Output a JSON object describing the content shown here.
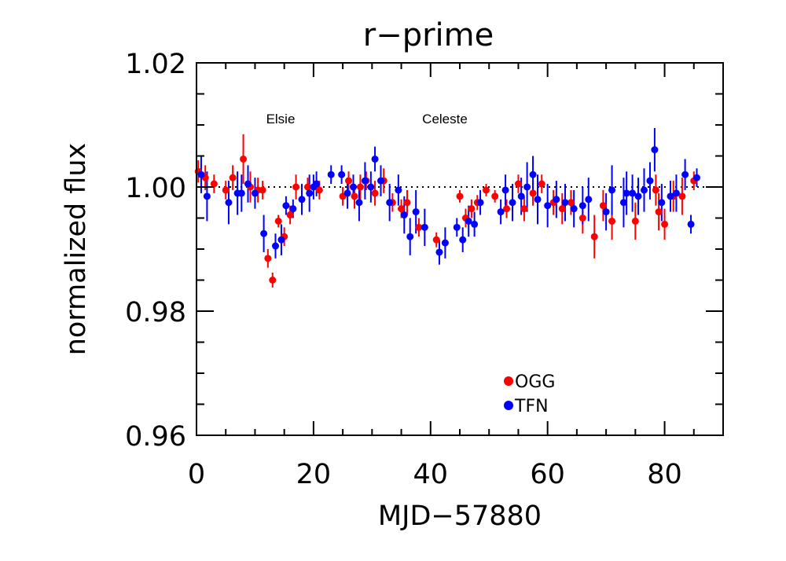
{
  "chart_data": {
    "type": "scatter",
    "title": "r−prime",
    "xlabel": "MJD−57880",
    "ylabel": "normalized flux",
    "xlim": [
      0,
      90
    ],
    "ylim": [
      0.96,
      1.02
    ],
    "x_ticks": [
      0,
      20,
      40,
      60,
      80
    ],
    "x_tick_labels": [
      "0",
      "20",
      "40",
      "60",
      "80"
    ],
    "y_ticks": [
      0.96,
      0.98,
      1.0,
      1.02
    ],
    "y_tick_labels": [
      "0.96",
      "0.98",
      "1.00",
      "1.02"
    ],
    "reference_line": 1.0,
    "annotations": [
      {
        "text": "Elsie",
        "x": 14,
        "y": 1.011
      },
      {
        "text": "Celeste",
        "x": 42,
        "y": 1.011
      }
    ],
    "legend_position": "bottom-center",
    "series": [
      {
        "name": "OGG",
        "color": "#ff0000",
        "points": [
          [
            0.3,
            1.0025,
            0.0018
          ],
          [
            1.5,
            1.0015,
            0.002
          ],
          [
            3.0,
            1.0005,
            0.0015
          ],
          [
            5.0,
            0.9995,
            0.0015
          ],
          [
            6.2,
            1.0015,
            0.002
          ],
          [
            8.0,
            1.0045,
            0.004
          ],
          [
            9.2,
            1.0,
            0.0025
          ],
          [
            10.5,
            0.9995,
            0.002
          ],
          [
            11.3,
            0.9995,
            0.0015
          ],
          [
            12.2,
            0.9885,
            0.0015
          ],
          [
            13.0,
            0.985,
            0.0012
          ],
          [
            14.0,
            0.9945,
            0.001
          ],
          [
            15.0,
            0.992,
            0.0015
          ],
          [
            16.0,
            0.9955,
            0.0015
          ],
          [
            17.0,
            1.0,
            0.002
          ],
          [
            19.0,
            1.0,
            0.0015
          ],
          [
            21.0,
            0.9995,
            0.0015
          ],
          [
            25.0,
            0.9985,
            0.0015
          ],
          [
            26.0,
            1.001,
            0.0015
          ],
          [
            27.0,
            0.9985,
            0.002
          ],
          [
            28.0,
            1.0,
            0.002
          ],
          [
            29.0,
            1.001,
            0.0015
          ],
          [
            30.5,
            0.999,
            0.002
          ],
          [
            32.0,
            1.001,
            0.002
          ],
          [
            33.5,
            0.9975,
            0.0015
          ],
          [
            35.0,
            0.9965,
            0.0015
          ],
          [
            36.0,
            0.9975,
            0.002
          ],
          [
            38.0,
            0.9935,
            0.0015
          ],
          [
            41.0,
            0.9915,
            0.0012
          ],
          [
            45.0,
            0.9985,
            0.001
          ],
          [
            46.0,
            0.995,
            0.0015
          ],
          [
            47.0,
            0.9965,
            0.0015
          ],
          [
            48.0,
            0.9975,
            0.0012
          ],
          [
            49.5,
            0.9995,
            0.001
          ],
          [
            51.0,
            0.9985,
            0.001
          ],
          [
            53.0,
            0.9965,
            0.0015
          ],
          [
            55.0,
            1.0005,
            0.0015
          ],
          [
            56.0,
            0.9965,
            0.002
          ],
          [
            57.5,
            0.999,
            0.002
          ],
          [
            59.0,
            1.0005,
            0.0015
          ],
          [
            61.0,
            0.9975,
            0.002
          ],
          [
            62.5,
            0.9965,
            0.0025
          ],
          [
            64.0,
            0.9975,
            0.002
          ],
          [
            66.0,
            0.995,
            0.0025
          ],
          [
            68.0,
            0.992,
            0.0035
          ],
          [
            69.5,
            0.997,
            0.0025
          ],
          [
            71.0,
            0.9945,
            0.003
          ],
          [
            75.0,
            0.9945,
            0.003
          ],
          [
            78.5,
            0.9995,
            0.0025
          ],
          [
            79.0,
            0.996,
            0.003
          ],
          [
            80.0,
            0.994,
            0.0025
          ],
          [
            81.5,
            0.9985,
            0.0025
          ],
          [
            83.0,
            0.9985,
            0.003
          ],
          [
            85.0,
            1.001,
            0.0015
          ]
        ]
      },
      {
        "name": "TFN",
        "color": "#0000ff",
        "points": [
          [
            0.8,
            1.002,
            0.003
          ],
          [
            1.8,
            0.9985,
            0.004
          ],
          [
            5.5,
            0.9975,
            0.0035
          ],
          [
            7.0,
            0.999,
            0.0035
          ],
          [
            7.7,
            0.999,
            0.003
          ],
          [
            8.8,
            1.0005,
            0.003
          ],
          [
            10.0,
            0.999,
            0.0025
          ],
          [
            11.5,
            0.9925,
            0.003
          ],
          [
            13.5,
            0.9905,
            0.002
          ],
          [
            14.5,
            0.9915,
            0.0025
          ],
          [
            15.3,
            0.997,
            0.0015
          ],
          [
            16.5,
            0.9965,
            0.0015
          ],
          [
            18.0,
            0.998,
            0.0025
          ],
          [
            19.3,
            0.999,
            0.003
          ],
          [
            20.0,
            1.0,
            0.002
          ],
          [
            20.5,
            1.0005,
            0.002
          ],
          [
            23.0,
            1.002,
            0.0015
          ],
          [
            24.8,
            1.002,
            0.0015
          ],
          [
            25.8,
            0.999,
            0.0025
          ],
          [
            26.8,
            1.0,
            0.002
          ],
          [
            27.8,
            0.9975,
            0.003
          ],
          [
            28.8,
            1.001,
            0.003
          ],
          [
            29.8,
            1.0,
            0.0025
          ],
          [
            30.5,
            1.0045,
            0.002
          ],
          [
            31.5,
            1.001,
            0.0025
          ],
          [
            33.0,
            0.9975,
            0.003
          ],
          [
            34.5,
            0.9995,
            0.0025
          ],
          [
            35.5,
            0.9955,
            0.003
          ],
          [
            36.5,
            0.992,
            0.003
          ],
          [
            37.5,
            0.996,
            0.0035
          ],
          [
            39.0,
            0.9935,
            0.003
          ],
          [
            41.5,
            0.9895,
            0.002
          ],
          [
            42.5,
            0.991,
            0.0025
          ],
          [
            44.5,
            0.9935,
            0.0015
          ],
          [
            45.5,
            0.9915,
            0.002
          ],
          [
            46.5,
            0.9945,
            0.0025
          ],
          [
            47.5,
            0.994,
            0.002
          ],
          [
            48.5,
            0.9975,
            0.002
          ],
          [
            52.0,
            0.996,
            0.002
          ],
          [
            52.8,
            0.9995,
            0.0025
          ],
          [
            54.0,
            0.9975,
            0.003
          ],
          [
            55.5,
            0.9985,
            0.003
          ],
          [
            56.5,
            1.0,
            0.004
          ],
          [
            57.5,
            1.002,
            0.003
          ],
          [
            58.3,
            0.998,
            0.004
          ],
          [
            60.0,
            0.997,
            0.0035
          ],
          [
            61.5,
            0.998,
            0.003
          ],
          [
            63.0,
            0.9975,
            0.003
          ],
          [
            64.5,
            0.9965,
            0.003
          ],
          [
            66.0,
            0.997,
            0.003
          ],
          [
            67.0,
            0.998,
            0.0035
          ],
          [
            70.0,
            0.996,
            0.003
          ],
          [
            71.0,
            0.9995,
            0.004
          ],
          [
            73.0,
            0.9975,
            0.004
          ],
          [
            73.5,
            0.999,
            0.0035
          ],
          [
            74.5,
            0.999,
            0.003
          ],
          [
            75.5,
            0.9985,
            0.003
          ],
          [
            76.5,
            0.9995,
            0.0035
          ],
          [
            77.5,
            1.001,
            0.003
          ],
          [
            78.3,
            1.006,
            0.0035
          ],
          [
            79.5,
            0.9975,
            0.003
          ],
          [
            81.0,
            0.9985,
            0.0025
          ],
          [
            82.0,
            0.999,
            0.003
          ],
          [
            83.5,
            1.002,
            0.0025
          ],
          [
            84.5,
            0.994,
            0.0015
          ],
          [
            85.5,
            1.0015,
            0.0015
          ]
        ]
      }
    ]
  }
}
